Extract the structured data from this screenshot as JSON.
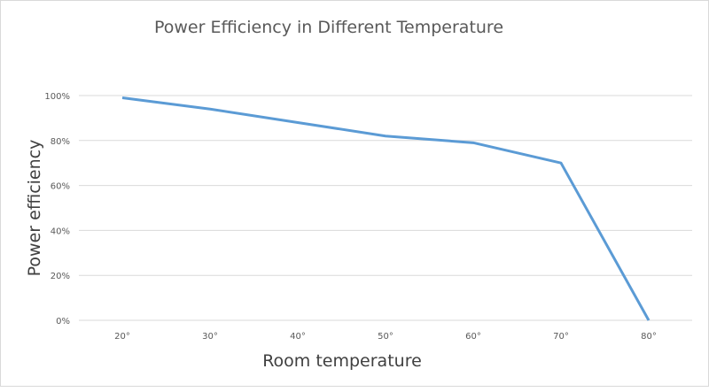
{
  "chart_data": {
    "type": "line",
    "title": "Power Efficiency in Different Temperature",
    "xlabel": "Room temperature",
    "ylabel": "Power  efficiency",
    "categories": [
      "20°",
      "30°",
      "40°",
      "50°",
      "60°",
      "70°",
      "80°"
    ],
    "series": [
      {
        "values": [
          99,
          94,
          88,
          82,
          79,
          70,
          0
        ],
        "color": "#5b9bd5"
      }
    ],
    "yticks": [
      "0%",
      "20%",
      "40%",
      "60%",
      "80%",
      "100%"
    ],
    "ylim": [
      0,
      100
    ],
    "grid": true,
    "legend": "none"
  }
}
